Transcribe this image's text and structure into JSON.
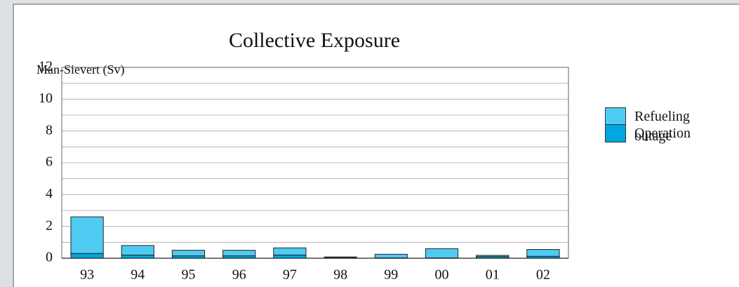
{
  "chart_data": {
    "type": "stacked_bar",
    "title": "Collective Exposure",
    "y_label": "Man-Sievert (Sv)",
    "categories": [
      "93",
      "94",
      "95",
      "96",
      "97",
      "98",
      "99",
      "00",
      "01",
      "02"
    ],
    "series": [
      {
        "name": "Operation",
        "color": "#00a6e0",
        "values": [
          0.3,
          0.2,
          0.15,
          0.15,
          0.2,
          0.05,
          0.02,
          0.02,
          0.1,
          0.12
        ]
      },
      {
        "name": "Refueling outage",
        "color": "#4fcbf2",
        "values": [
          2.3,
          0.6,
          0.35,
          0.35,
          0.45,
          0.03,
          0.23,
          0.58,
          0.08,
          0.43
        ]
      }
    ],
    "ylim": [
      0,
      12
    ],
    "yticks": [
      0,
      2,
      4,
      6,
      8,
      10,
      12
    ],
    "minor_yticks": [
      1,
      3,
      5,
      7,
      9,
      11
    ],
    "grid": true
  }
}
